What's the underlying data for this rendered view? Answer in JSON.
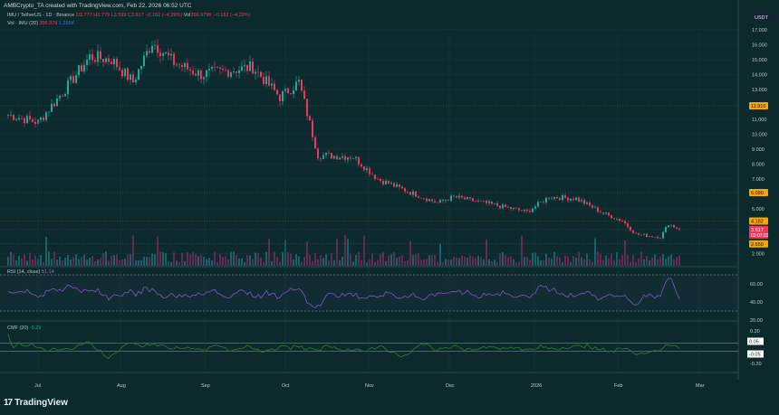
{
  "header": {
    "attribution": "AMBCrypto_TA created with TradingView.com, Feb 22, 2026 06:52 UTC"
  },
  "legend": {
    "symbol": "IMU / TetherUS · 1D · Binance",
    "open": "O3.777",
    "high": "H3.779",
    "low": "L3.599",
    "close": "C3.617",
    "change": "−0.162 (−4.29%)",
    "vol_label": "Vol",
    "vol_value": "396.979K",
    "vol_change": "−0.162 (−4.29%)",
    "vol_ma_label": "Vol · IMU (20)",
    "vol_ma_value1": "396.979",
    "vol_ma_value2": "1.295K"
  },
  "price_axis": {
    "currency": "USDT",
    "ticks": [
      "17.000",
      "16.000",
      "15.000",
      "14.000",
      "13.000",
      "11.000",
      "10.000",
      "9.000",
      "8.000",
      "7.000",
      "5.000",
      "2.000"
    ],
    "labels": [
      {
        "text": "11.910",
        "value": 11.91,
        "color": "#f7a600"
      },
      {
        "text": "6.090",
        "value": 6.09,
        "color": "#f7a600"
      },
      {
        "text": "4.182",
        "value": 4.182,
        "color": "#f7a600"
      },
      {
        "text": "3.617",
        "sub": "02:07:22",
        "value": 3.617,
        "color": "#f23658"
      },
      {
        "text": "2.650",
        "value": 2.65,
        "color": "#f7a600"
      }
    ]
  },
  "rsi": {
    "label": "RSI (14, close)",
    "value": "51.14",
    "ticks": [
      "60.00",
      "40.00",
      "20.00"
    ],
    "color": "#7e57c2"
  },
  "cmf": {
    "label": "CMF (20)",
    "value": "-0.29",
    "ticks": [
      "0.20",
      "-0.20"
    ],
    "badges": [
      "0.05",
      "-0.05"
    ],
    "color": "#2e7d32"
  },
  "time_axis": [
    "Jul",
    "Aug",
    "Sep",
    "Oct",
    "Nov",
    "Dec",
    "2026",
    "Feb",
    "Mar"
  ],
  "branding": {
    "logo": "TradingView"
  },
  "colors": {
    "up": "#26a69a",
    "down": "#f23658",
    "background": "#0c2a2c"
  },
  "chart_data": {
    "type": "candlestick",
    "ylim": [
      2,
      17
    ],
    "close_path": [
      [
        "2025-06-20",
        11.3
      ],
      [
        "2025-07-01",
        10.8
      ],
      [
        "2025-07-10",
        12.8
      ],
      [
        "2025-07-20",
        15.2
      ],
      [
        "2025-07-28",
        15.0
      ],
      [
        "2025-08-05",
        13.5
      ],
      [
        "2025-08-12",
        16.2
      ],
      [
        "2025-08-20",
        14.8
      ],
      [
        "2025-08-30",
        14.0
      ],
      [
        "2025-09-10",
        14.3
      ],
      [
        "2025-09-18",
        14.5
      ],
      [
        "2025-09-28",
        12.5
      ],
      [
        "2025-10-05",
        13.5
      ],
      [
        "2025-10-12",
        8.6
      ],
      [
        "2025-10-25",
        8.5
      ],
      [
        "2025-11-03",
        7.0
      ],
      [
        "2025-11-15",
        6.1
      ],
      [
        "2025-11-25",
        5.4
      ],
      [
        "2025-12-01",
        5.8
      ],
      [
        "2025-12-15",
        5.3
      ],
      [
        "2025-12-28",
        4.8
      ],
      [
        "2026-01-05",
        5.8
      ],
      [
        "2026-01-15",
        5.7
      ],
      [
        "2026-01-25",
        4.7
      ],
      [
        "2026-02-01",
        4.2
      ],
      [
        "2026-02-06",
        3.3
      ],
      [
        "2026-02-15",
        3.1
      ],
      [
        "2026-02-18",
        4.0
      ],
      [
        "2026-02-22",
        3.617
      ]
    ]
  }
}
